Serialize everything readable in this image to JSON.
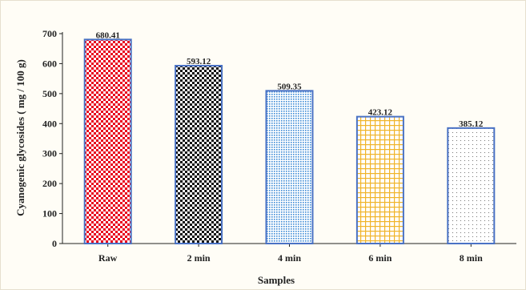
{
  "chart_data": {
    "type": "bar",
    "categories": [
      "Raw",
      "2 min",
      "4 min",
      "6 min",
      "8 min"
    ],
    "values": [
      680.41,
      593.12,
      509.35,
      423.12,
      385.12
    ],
    "data_labels": [
      "680.41",
      "593.12",
      "509.35",
      "423.12",
      "385.12"
    ],
    "title": "",
    "xlabel": "Samples",
    "ylabel": "Cyanogenic glycosides ( mg / 100 g)",
    "ylim": [
      0,
      700
    ],
    "yticks": [
      0,
      100,
      200,
      300,
      400,
      500,
      600,
      700
    ],
    "grid": false,
    "legend": "none",
    "bar_styles": [
      {
        "pattern": "checker",
        "fg": "#e8001c",
        "bg": "#ffffff",
        "border": "#4a72c4"
      },
      {
        "pattern": "checker",
        "fg": "#111111",
        "bg": "#ffffff",
        "border": "#4a72c4"
      },
      {
        "pattern": "dots",
        "fg": "#3d8bd6",
        "bg": "#ffffff",
        "border": "#4a72c4"
      },
      {
        "pattern": "grid",
        "fg": "#f0b429",
        "bg": "#ffffff",
        "border": "#4a72c4"
      },
      {
        "pattern": "sparse-dots",
        "fg": "#555555",
        "bg": "#ffffff",
        "border": "#4a72c4"
      }
    ]
  }
}
